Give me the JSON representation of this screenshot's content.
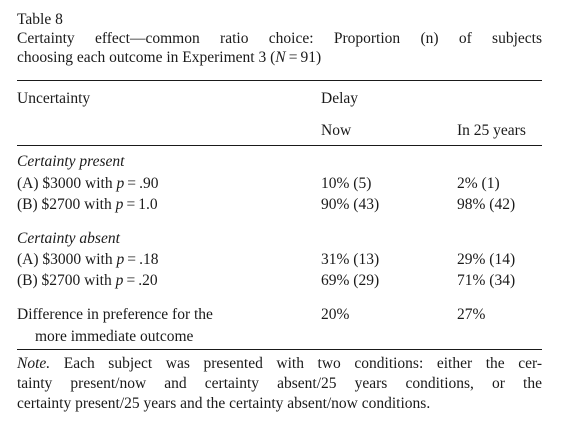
{
  "table_label": "Table 8",
  "caption": {
    "line1": "Certainty effect—common ratio choice: Proportion (n) of subjects",
    "line2_prefix": "choosing each outcome in Experiment 3 (",
    "line2_var": "N",
    "line2_suffix": " = 91)"
  },
  "headers": {
    "uncertainty": "Uncertainty",
    "delay": "Delay",
    "now": "Now",
    "in25": "In 25 years"
  },
  "sections": [
    {
      "title": "Certainty present",
      "rows": [
        {
          "label_pre": "(A) $3000 with ",
          "label_var": "p",
          "label_post": " = .90",
          "now": "10% (5)",
          "in25": "2% (1)"
        },
        {
          "label_pre": "(B) $2700 with ",
          "label_var": "p",
          "label_post": " = 1.0",
          "now": "90% (43)",
          "in25": "98% (42)"
        }
      ]
    },
    {
      "title": "Certainty absent",
      "rows": [
        {
          "label_pre": "(A) $3000 with ",
          "label_var": "p",
          "label_post": " = .18",
          "now": "31% (13)",
          "in25": "29% (14)"
        },
        {
          "label_pre": "(B) $2700 with ",
          "label_var": "p",
          "label_post": " = .20",
          "now": "69% (29)",
          "in25": "71% (34)"
        }
      ]
    }
  ],
  "difference": {
    "line1": "Difference in preference for the",
    "line2": "more immediate outcome",
    "now": "20%",
    "in25": "27%"
  },
  "note": {
    "label": "Note.",
    "line1": "Each subject was presented with two conditions: either the cer-",
    "line2": "tainty present/now and certainty absent/25 years conditions, or the",
    "line3": "certainty present/25 years and the certainty absent/now conditions."
  }
}
